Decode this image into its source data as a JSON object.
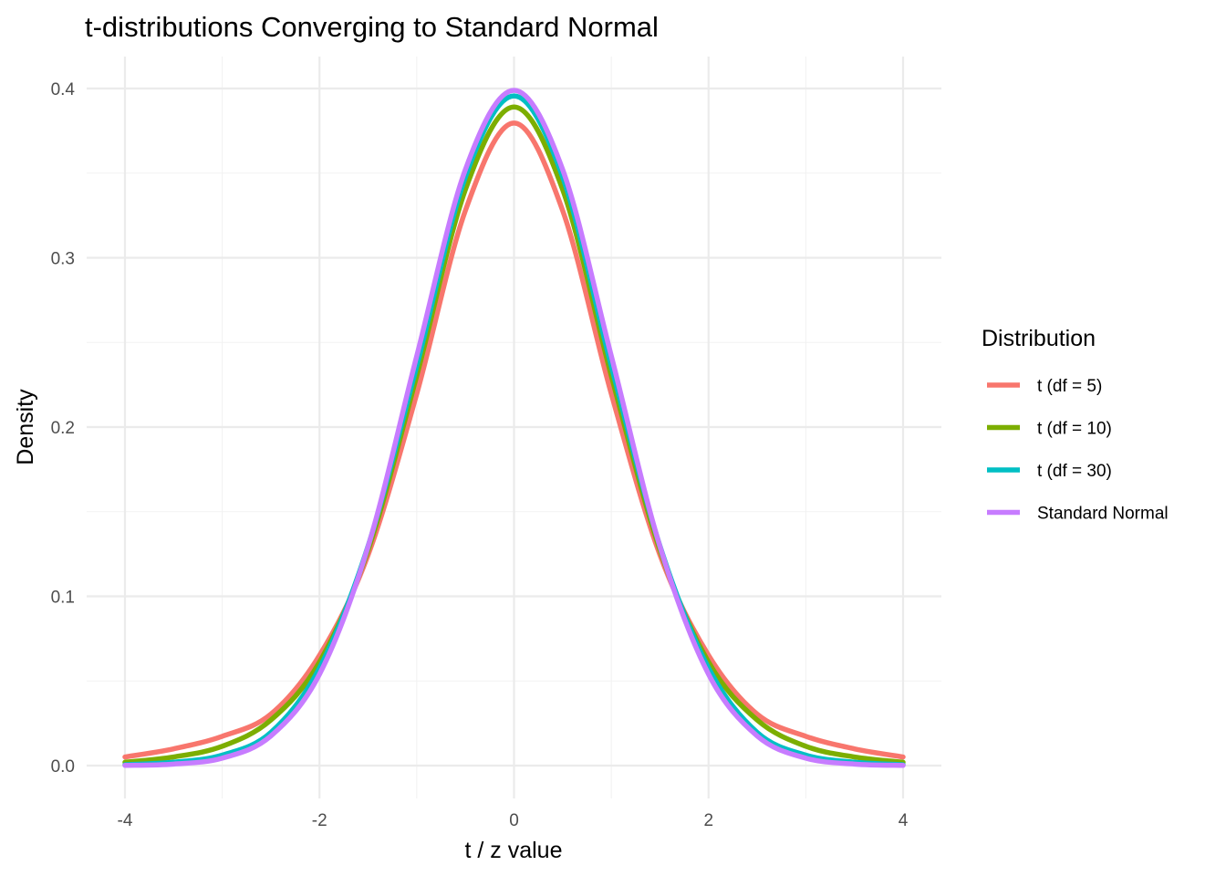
{
  "chart_data": {
    "type": "line",
    "title": "t-distributions Converging to Standard Normal",
    "xlabel": "t / z value",
    "ylabel": "Density",
    "xlim": [
      -4,
      4
    ],
    "ylim": [
      0,
      0.4
    ],
    "x_ticks": [
      -4,
      -2,
      0,
      2,
      4
    ],
    "x_tick_labels": [
      "-4",
      "-2",
      "0",
      "2",
      "4"
    ],
    "y_ticks": [
      0.0,
      0.1,
      0.2,
      0.3,
      0.4
    ],
    "y_tick_labels": [
      "0.0",
      "0.1",
      "0.2",
      "0.3",
      "0.4"
    ],
    "grid": true,
    "legend": {
      "title": "Distribution",
      "position": "right"
    },
    "x": [
      -4,
      -3.5,
      -3,
      -2.5,
      -2,
      -1.5,
      -1,
      -0.5,
      0,
      0.5,
      1,
      1.5,
      2,
      2.5,
      3,
      3.5,
      4
    ],
    "series": [
      {
        "name": "t (df = 5)",
        "color": "#F8766D",
        "values": [
          0.0051,
          0.0099,
          0.0173,
          0.0304,
          0.0651,
          0.1245,
          0.2197,
          0.3279,
          0.3796,
          0.3279,
          0.2197,
          0.1245,
          0.0651,
          0.0304,
          0.0173,
          0.0099,
          0.0051
        ]
      },
      {
        "name": "t (df = 10)",
        "color": "#7CAE00",
        "values": [
          0.002,
          0.0051,
          0.0114,
          0.0269,
          0.0611,
          0.1274,
          0.2304,
          0.3403,
          0.3891,
          0.3403,
          0.2304,
          0.1274,
          0.0611,
          0.0269,
          0.0114,
          0.0051,
          0.002
        ]
      },
      {
        "name": "t (df = 30)",
        "color": "#00BFC4",
        "values": [
          0.0005,
          0.002,
          0.0062,
          0.0196,
          0.0577,
          0.1298,
          0.236,
          0.3477,
          0.3956,
          0.3477,
          0.236,
          0.1298,
          0.0577,
          0.0196,
          0.0062,
          0.002,
          0.0005
        ]
      },
      {
        "name": "Standard Normal",
        "color": "#C77CFF",
        "values": [
          0.0001,
          0.0009,
          0.0044,
          0.0175,
          0.054,
          0.1295,
          0.242,
          0.3521,
          0.3989,
          0.3521,
          0.242,
          0.1295,
          0.054,
          0.0175,
          0.0044,
          0.0009,
          0.0001
        ]
      }
    ]
  }
}
